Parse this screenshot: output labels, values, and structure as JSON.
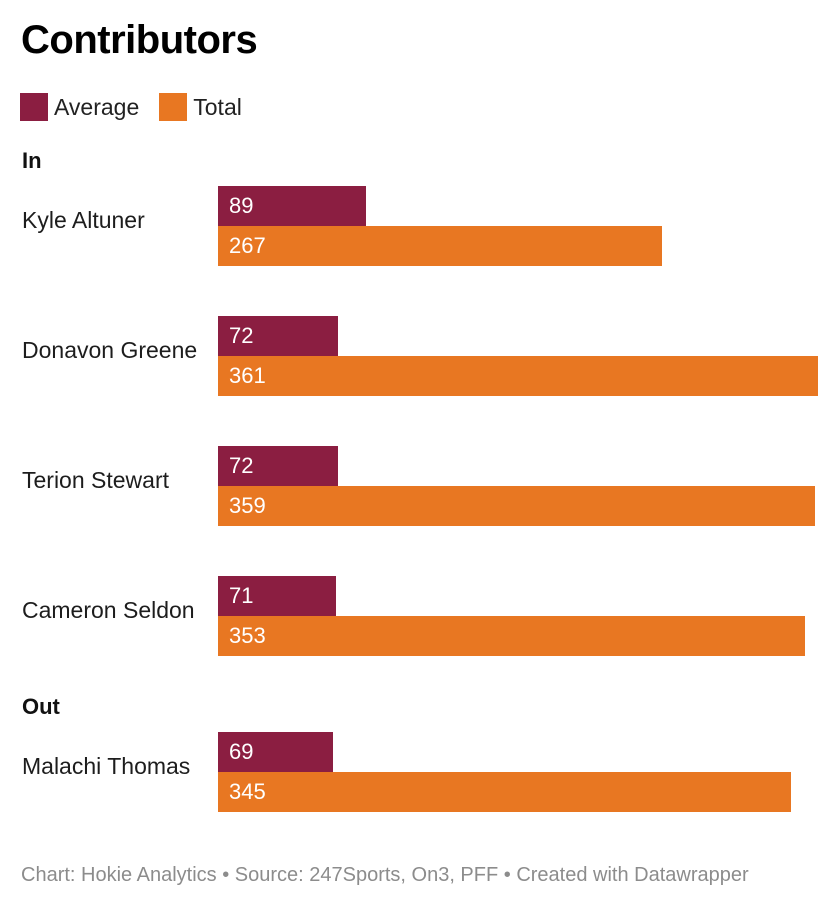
{
  "title": "Contributors",
  "legend": [
    {
      "label": "Average",
      "color": "#8b1e41"
    },
    {
      "label": "Total",
      "color": "#e87722"
    }
  ],
  "footer": "Chart: Hokie Analytics • Source: 247Sports, On3, PFF • Created with Datawrapper",
  "chart_data": {
    "type": "bar",
    "orientation": "horizontal",
    "grouped": true,
    "title": "Contributors",
    "series": [
      {
        "name": "Average",
        "color": "#8b1e41"
      },
      {
        "name": "Total",
        "color": "#e87722"
      }
    ],
    "xlim": [
      0,
      361
    ],
    "groups": [
      {
        "label": "In",
        "rows": [
          {
            "label": "Kyle Altuner",
            "average": 89,
            "total": 267
          },
          {
            "label": "Donavon Greene",
            "average": 72,
            "total": 361
          },
          {
            "label": "Terion Stewart",
            "average": 72,
            "total": 359
          },
          {
            "label": "Cameron Seldon",
            "average": 71,
            "total": 353
          }
        ]
      },
      {
        "label": "Out",
        "rows": [
          {
            "label": "Malachi Thomas",
            "average": 69,
            "total": 345
          }
        ]
      }
    ],
    "legend_position": "top-left",
    "grid": false
  }
}
